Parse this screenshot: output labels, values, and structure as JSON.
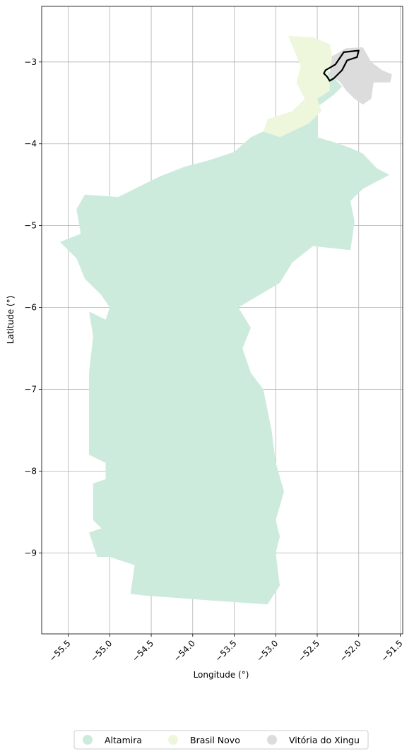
{
  "chart_data": {
    "type": "map",
    "xlabel": "Longitude (°)",
    "ylabel": "Latitude (°)",
    "xlim": [
      -55.82,
      -51.47
    ],
    "ylim": [
      -9.99,
      -2.32
    ],
    "xticks": [
      -55.5,
      -55.0,
      -54.5,
      -54.0,
      -53.5,
      -53.0,
      -52.5,
      -52.0,
      -51.5
    ],
    "xtick_labels": [
      "−55.5",
      "−55.0",
      "−54.5",
      "−54.0",
      "−53.5",
      "−53.0",
      "−52.5",
      "−52.0",
      "−51.5"
    ],
    "yticks": [
      -3,
      -4,
      -5,
      -6,
      -7,
      -8,
      -9
    ],
    "ytick_labels": [
      "−3",
      "−4",
      "−5",
      "−6",
      "−7",
      "−8",
      "−9"
    ],
    "grid": true,
    "legend_position": "bottom-center",
    "regions": [
      {
        "name": "Altamira",
        "color": "#cdebdc",
        "outline": [
          [
            -51.63,
            -4.38
          ],
          [
            -51.78,
            -4.3
          ],
          [
            -51.95,
            -4.12
          ],
          [
            -52.1,
            -4.05
          ],
          [
            -52.3,
            -3.98
          ],
          [
            -52.5,
            -3.92
          ],
          [
            -52.5,
            -3.55
          ],
          [
            -52.3,
            -3.4
          ],
          [
            -52.2,
            -3.3
          ],
          [
            -52.38,
            -3.1
          ],
          [
            -52.35,
            -3.25
          ],
          [
            -52.5,
            -3.45
          ],
          [
            -52.65,
            -3.6
          ],
          [
            -52.8,
            -3.72
          ],
          [
            -52.95,
            -3.8
          ],
          [
            -53.15,
            -3.85
          ],
          [
            -53.3,
            -3.92
          ],
          [
            -53.5,
            -4.1
          ],
          [
            -53.8,
            -4.2
          ],
          [
            -54.1,
            -4.28
          ],
          [
            -54.4,
            -4.4
          ],
          [
            -54.7,
            -4.55
          ],
          [
            -54.9,
            -4.65
          ],
          [
            -55.3,
            -4.62
          ],
          [
            -55.4,
            -4.8
          ],
          [
            -55.35,
            -5.1
          ],
          [
            -55.6,
            -5.2
          ],
          [
            -55.4,
            -5.4
          ],
          [
            -55.3,
            -5.65
          ],
          [
            -55.1,
            -5.85
          ],
          [
            -55.0,
            -6.0
          ],
          [
            -55.05,
            -6.15
          ],
          [
            -55.25,
            -6.05
          ],
          [
            -55.2,
            -6.35
          ],
          [
            -55.25,
            -6.8
          ],
          [
            -55.25,
            -7.3
          ],
          [
            -55.25,
            -7.8
          ],
          [
            -55.05,
            -7.9
          ],
          [
            -55.05,
            -8.1
          ],
          [
            -55.2,
            -8.15
          ],
          [
            -55.2,
            -8.6
          ],
          [
            -55.1,
            -8.7
          ],
          [
            -55.25,
            -8.75
          ],
          [
            -55.15,
            -9.05
          ],
          [
            -55.0,
            -9.05
          ],
          [
            -54.7,
            -9.15
          ],
          [
            -54.75,
            -9.5
          ],
          [
            -54.6,
            -9.52
          ],
          [
            -53.8,
            -9.58
          ],
          [
            -53.1,
            -9.63
          ],
          [
            -52.95,
            -9.4
          ],
          [
            -53.0,
            -9.0
          ],
          [
            -52.95,
            -8.8
          ],
          [
            -53.0,
            -8.6
          ],
          [
            -52.9,
            -8.25
          ],
          [
            -53.0,
            -7.9
          ],
          [
            -53.05,
            -7.5
          ],
          [
            -53.15,
            -7.0
          ],
          [
            -53.3,
            -6.8
          ],
          [
            -53.4,
            -6.5
          ],
          [
            -53.3,
            -6.25
          ],
          [
            -53.45,
            -6.0
          ],
          [
            -53.2,
            -5.85
          ],
          [
            -52.95,
            -5.7
          ],
          [
            -52.8,
            -5.45
          ],
          [
            -52.55,
            -5.25
          ],
          [
            -52.1,
            -5.3
          ],
          [
            -52.05,
            -4.95
          ],
          [
            -52.1,
            -4.7
          ],
          [
            -51.95,
            -4.55
          ]
        ]
      },
      {
        "name": "Brasil Novo",
        "color": "#eef7dc",
        "outline": [
          [
            -52.85,
            -2.68
          ],
          [
            -52.55,
            -2.7
          ],
          [
            -52.35,
            -2.78
          ],
          [
            -52.3,
            -3.0
          ],
          [
            -52.4,
            -3.1
          ],
          [
            -52.35,
            -3.25
          ],
          [
            -52.35,
            -3.35
          ],
          [
            -52.5,
            -3.45
          ],
          [
            -52.45,
            -3.6
          ],
          [
            -52.6,
            -3.75
          ],
          [
            -52.95,
            -3.92
          ],
          [
            -53.15,
            -3.85
          ],
          [
            -53.1,
            -3.7
          ],
          [
            -52.8,
            -3.6
          ],
          [
            -52.65,
            -3.45
          ],
          [
            -52.75,
            -3.25
          ],
          [
            -52.7,
            -3.05
          ]
        ]
      },
      {
        "name": "Vitória do Xingu",
        "color": "#dcdcdc",
        "outline": [
          [
            -52.32,
            -2.93
          ],
          [
            -52.15,
            -2.83
          ],
          [
            -51.95,
            -2.82
          ],
          [
            -51.85,
            -3.0
          ],
          [
            -51.72,
            -3.1
          ],
          [
            -51.6,
            -3.15
          ],
          [
            -51.62,
            -3.25
          ],
          [
            -51.82,
            -3.25
          ],
          [
            -51.85,
            -3.45
          ],
          [
            -51.95,
            -3.52
          ],
          [
            -52.05,
            -3.45
          ],
          [
            -52.15,
            -3.35
          ],
          [
            -52.22,
            -3.25
          ],
          [
            -52.35,
            -3.15
          ]
        ]
      }
    ],
    "highlight": {
      "outline": [
        [
          -52.4,
          -3.1
        ],
        [
          -52.28,
          -3.03
        ],
        [
          -52.18,
          -2.88
        ],
        [
          -52.0,
          -2.86
        ],
        [
          -52.02,
          -2.94
        ],
        [
          -52.14,
          -2.98
        ],
        [
          -52.2,
          -3.1
        ],
        [
          -52.3,
          -3.2
        ],
        [
          -52.35,
          -3.23
        ],
        [
          -52.38,
          -3.18
        ],
        [
          -52.42,
          -3.14
        ]
      ],
      "color": "#000000"
    },
    "legend": [
      "Altamira",
      "Brasil Novo",
      "Vitória do Xingu"
    ]
  }
}
